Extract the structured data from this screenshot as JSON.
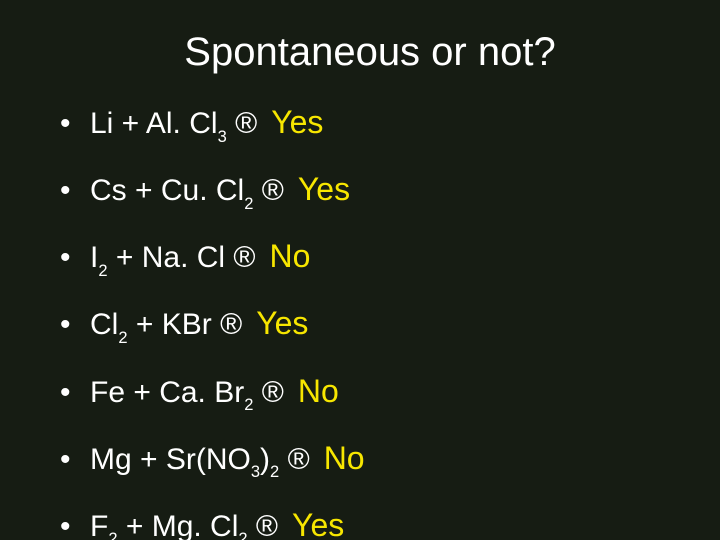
{
  "slide": {
    "background_color": "#161c13",
    "title": "Spontaneous or not?",
    "title_color": "#ffffff",
    "title_fontsize": 40,
    "bullet_char": "•",
    "arrow_char": "®",
    "text_color": "#ffffff",
    "text_fontsize": 30,
    "answer_color": "#f7e600",
    "answer_font": "Comic Sans MS",
    "answer_fontsize": 32,
    "items": [
      {
        "pre": "Li + Al. Cl",
        "sub": "3",
        "post": " ",
        "answer": "Yes"
      },
      {
        "pre": "Cs + Cu. Cl",
        "sub": "2",
        "post": " ",
        "answer": "Yes"
      },
      {
        "pre": "I",
        "sub": "2",
        "mid": "  +  Na. Cl ",
        "answer": "No"
      },
      {
        "pre": "Cl",
        "sub": "2",
        "mid": " + KBr ",
        "answer": "Yes"
      },
      {
        "pre": "Fe + Ca. Br",
        "sub": "2",
        "post": " ",
        "answer": "No"
      },
      {
        "pre": "Mg + Sr(NO",
        "sub": "3",
        "mid": ")",
        "sub2": "2",
        "post": " ",
        "answer": "No"
      },
      {
        "pre": "F",
        "sub": "2",
        "mid": " + Mg. Cl",
        "sub2": "2",
        "post": " ",
        "answer": "Yes"
      }
    ]
  }
}
